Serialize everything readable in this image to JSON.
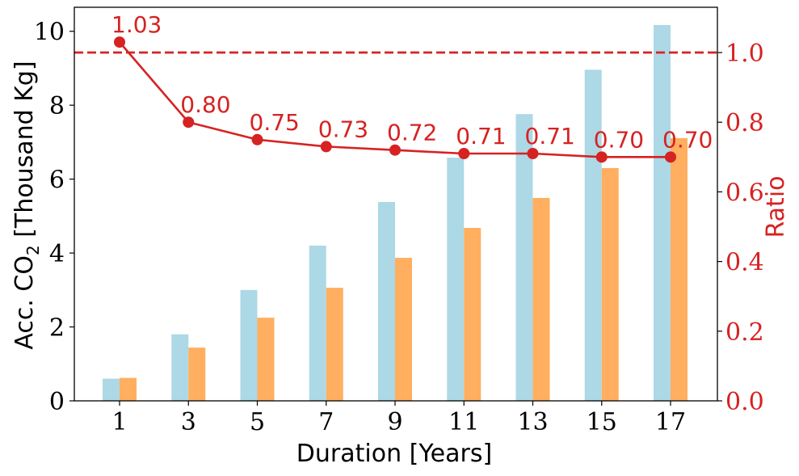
{
  "chart_data": {
    "type": "bar",
    "categories": [
      "1",
      "3",
      "5",
      "7",
      "9",
      "11",
      "13",
      "15",
      "17"
    ],
    "series": [
      {
        "axis": "left",
        "type": "bar",
        "color": "#add8e6",
        "values": [
          0.6,
          1.8,
          3.0,
          4.2,
          5.38,
          6.58,
          7.76,
          8.96,
          10.17
        ]
      },
      {
        "axis": "left",
        "type": "bar",
        "color": "#ffaf5f",
        "values": [
          0.62,
          1.44,
          2.25,
          3.06,
          3.87,
          4.68,
          5.49,
          6.3,
          7.11
        ]
      },
      {
        "axis": "right",
        "type": "line",
        "color": "#d62222",
        "marker": "circle",
        "values": [
          1.03,
          0.8,
          0.75,
          0.73,
          0.72,
          0.71,
          0.71,
          0.7,
          0.7
        ],
        "labels": [
          "1.03",
          "0.80",
          "0.75",
          "0.73",
          "0.72",
          "0.71",
          "0.71",
          "0.70",
          "0.70"
        ]
      }
    ],
    "reference_line": {
      "axis": "right",
      "value": 1.0,
      "style": "dashed",
      "color": "#d62222"
    },
    "xlabel": "Duration [Years]",
    "ylabel_left": "Acc. CO2 [Thousand Kg]",
    "ylabel_left_prefix": "Acc. CO",
    "ylabel_left_sub": "2",
    "ylabel_left_suffix": " [Thousand Kg]",
    "ylabel_right": "Ratio",
    "ylim_left": [
      0,
      10.65
    ],
    "ylim_right": [
      0,
      1.13
    ],
    "yticks_left": [
      "0",
      "2",
      "4",
      "6",
      "8",
      "10"
    ],
    "yticks_right": [
      "0.0",
      "0.2",
      "0.4",
      "0.6",
      "0.8",
      "1.0"
    ],
    "grid": false
  }
}
